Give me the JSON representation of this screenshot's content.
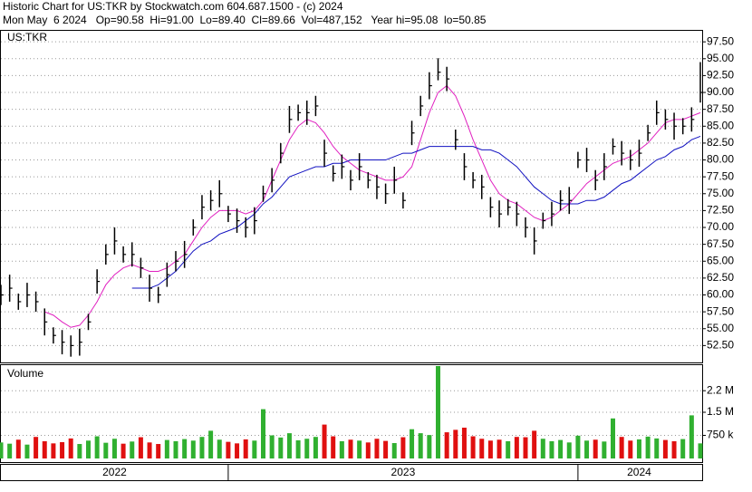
{
  "chart_data": {
    "type": "ohlc",
    "title": "Historic Chart for US:TKR by Stockwatch.com 604.687.1500 - (c) 2024",
    "subtitle": "Mon May  6 2024   Op=90.58  Hi=91.00  Lo=89.40  Cl=89.66  Vol=487,152   Year hi=95.08  lo=50.85",
    "symbol_label": "US:TKR",
    "bar_color": "#000000",
    "grid": true,
    "xlim": [
      2022.35,
      2024.35
    ],
    "xticks": [
      2023,
      2024
    ],
    "year_labels": [
      2022,
      2023,
      2024
    ],
    "ylim": [
      50,
      99
    ],
    "yticks": [
      {
        "value": 52.5,
        "label": "52.50"
      },
      {
        "value": 55,
        "label": "55.00"
      },
      {
        "value": 57.5,
        "label": "57.50"
      },
      {
        "value": 60,
        "label": "60.00"
      },
      {
        "value": 62.5,
        "label": "62.50"
      },
      {
        "value": 65,
        "label": "65.00"
      },
      {
        "value": 67.5,
        "label": "67.50"
      },
      {
        "value": 70,
        "label": "70.00"
      },
      {
        "value": 72.5,
        "label": "72.50"
      },
      {
        "value": 75,
        "label": "75.00"
      },
      {
        "value": 77.5,
        "label": "77.50"
      },
      {
        "value": 80,
        "label": "80.00"
      },
      {
        "value": 82.5,
        "label": "82.50"
      },
      {
        "value": 85,
        "label": "85.00"
      },
      {
        "value": 87.5,
        "label": "87.50"
      },
      {
        "value": 90,
        "label": "90.00"
      },
      {
        "value": 92.5,
        "label": "92.50"
      },
      {
        "value": 95,
        "label": "95.00"
      },
      {
        "value": 97.5,
        "label": "97.50"
      }
    ],
    "x": [
      2022.35,
      2022.375,
      2022.4,
      2022.425,
      2022.45,
      2022.475,
      2022.5,
      2022.525,
      2022.55,
      2022.575,
      2022.6,
      2022.625,
      2022.65,
      2022.675,
      2022.7,
      2022.725,
      2022.75,
      2022.775,
      2022.8,
      2022.825,
      2022.85,
      2022.875,
      2022.9,
      2022.925,
      2022.95,
      2022.975,
      2023.0,
      2023.025,
      2023.05,
      2023.075,
      2023.1,
      2023.125,
      2023.15,
      2023.175,
      2023.2,
      2023.225,
      2023.25,
      2023.275,
      2023.3,
      2023.325,
      2023.35,
      2023.375,
      2023.4,
      2023.425,
      2023.45,
      2023.475,
      2023.5,
      2023.525,
      2023.55,
      2023.575,
      2023.6,
      2023.625,
      2023.65,
      2023.675,
      2023.7,
      2023.725,
      2023.75,
      2023.775,
      2023.8,
      2023.825,
      2023.85,
      2023.875,
      2023.9,
      2023.925,
      2023.95,
      2023.975,
      2024.0,
      2024.025,
      2024.05,
      2024.075,
      2024.1,
      2024.125,
      2024.15,
      2024.175,
      2024.2,
      2024.225,
      2024.25,
      2024.275,
      2024.3,
      2024.325,
      2024.35
    ],
    "high": [
      61.5,
      63,
      60.2,
      61.8,
      60.5,
      58,
      55.2,
      54.8,
      54,
      55,
      57.2,
      63.8,
      67.5,
      70,
      67.2,
      67.8,
      65.5,
      63,
      61.2,
      64.8,
      66.5,
      68,
      71.2,
      74.8,
      75.5,
      77,
      73.2,
      72.8,
      71.5,
      73,
      76.2,
      78.8,
      82.5,
      88,
      88.2,
      88.8,
      89.5,
      83,
      79.2,
      80.8,
      78.5,
      81,
      78.2,
      77.8,
      76.5,
      79,
      75.2,
      85.8,
      89.5,
      93,
      95.08,
      93.8,
      84.5,
      81,
      78.2,
      77.8,
      74.5,
      74,
      74.2,
      73.8,
      71.5,
      70,
      72.2,
      73.8,
      75.5,
      76,
      81.2,
      81.8,
      78.5,
      81,
      83.2,
      82.8,
      81.5,
      83,
      85.2,
      88.8,
      87.5,
      87,
      86.2,
      87.8,
      94.5
    ],
    "low": [
      58.5,
      59,
      57.8,
      58.2,
      57.5,
      54,
      52.8,
      51.2,
      50.85,
      51,
      54.8,
      60.2,
      64.5,
      66,
      64.8,
      64.2,
      62.5,
      59,
      58.8,
      61.2,
      63.5,
      64,
      68.8,
      71.2,
      72.5,
      73,
      70.8,
      69.2,
      68.5,
      69,
      73.8,
      75.2,
      79.5,
      84,
      85.8,
      85.2,
      86.5,
      79,
      76.8,
      77.2,
      75.5,
      77,
      75.8,
      74.2,
      73.5,
      75,
      72.8,
      82.2,
      86.5,
      89,
      91.8,
      90.2,
      81.5,
      77,
      75.8,
      74.2,
      71.5,
      70,
      71.8,
      70.2,
      68.5,
      66,
      69.8,
      70.2,
      72.5,
      72,
      78.8,
      78.2,
      75.5,
      77,
      80.8,
      79.2,
      78.5,
      79,
      82.8,
      85.2,
      84.5,
      83,
      83.8,
      84.2,
      88.5
    ],
    "close": [
      60,
      61,
      59,
      60,
      59,
      56,
      54,
      53,
      52.5,
      53,
      56,
      62,
      66,
      68,
      66,
      66,
      64,
      61,
      60,
      63,
      65,
      66,
      70,
      73,
      74,
      75,
      72,
      71,
      70,
      71,
      75,
      77,
      81,
      86,
      87,
      87,
      88,
      81,
      78,
      79,
      77,
      79,
      77,
      76,
      75,
      77,
      74,
      84,
      88,
      91,
      93,
      92,
      83,
      79,
      77,
      76,
      73,
      72,
      73,
      72,
      70,
      68,
      71,
      72,
      74,
      74,
      80,
      80,
      77,
      79,
      82,
      81,
      80,
      81,
      84,
      87,
      86,
      85,
      85,
      86,
      90
    ],
    "series": [
      {
        "color": "#e020c0",
        "values": [
          null,
          null,
          null,
          null,
          null,
          57.5,
          57,
          56,
          55.2,
          55.5,
          57,
          59,
          61.5,
          63,
          64,
          64.5,
          64,
          63.5,
          63.5,
          64,
          65,
          66,
          68,
          70,
          71.5,
          72.5,
          72.5,
          72.5,
          72,
          72.5,
          74,
          77,
          80,
          83,
          85,
          86,
          85.5,
          84,
          82,
          80.5,
          79.5,
          78.5,
          78,
          77.5,
          77,
          77,
          77.5,
          79,
          83,
          87,
          90,
          91,
          89.5,
          86.5,
          83,
          80,
          77,
          75,
          74,
          73.5,
          72.5,
          71.5,
          71,
          71.5,
          72.5,
          73.5,
          75,
          76.5,
          77.5,
          78.5,
          79.5,
          80,
          80.5,
          81.5,
          82.5,
          84,
          85.5,
          86,
          86,
          86.5,
          87
        ]
      },
      {
        "color": "#1010c0",
        "values": [
          null,
          null,
          null,
          null,
          null,
          null,
          null,
          null,
          null,
          null,
          null,
          null,
          null,
          null,
          null,
          61,
          61,
          61,
          61.5,
          62.5,
          63.5,
          65,
          66.5,
          67.5,
          68,
          69,
          69.5,
          70,
          71,
          72,
          73.5,
          74.5,
          76,
          77.5,
          78,
          78.5,
          79,
          79,
          79.5,
          79.5,
          80,
          80,
          80,
          80,
          80,
          80.5,
          81,
          81,
          81.5,
          82,
          82,
          82,
          82,
          82,
          82,
          81.5,
          81.5,
          81,
          80,
          79,
          77.5,
          76,
          75,
          74,
          73.5,
          73.5,
          73.5,
          74,
          74,
          74.5,
          75.5,
          76.5,
          77,
          78,
          79,
          80,
          80.5,
          81.5,
          82,
          83,
          83.5
        ]
      }
    ],
    "volume": {
      "title": "Volume",
      "up_color": "#30b030",
      "down_color": "#e01010",
      "ylim": [
        0,
        3000000
      ],
      "yticks": [
        {
          "value": 750000,
          "label": "750 k"
        },
        {
          "value": 1500000,
          "label": "1.5 M"
        },
        {
          "value": 2200000,
          "label": "2.2 M"
        }
      ],
      "values": [
        520000,
        480000,
        610000,
        450000,
        700000,
        560000,
        490000,
        530000,
        650000,
        470000,
        580000,
        720000,
        510000,
        640000,
        480000,
        550000,
        690000,
        520000,
        470000,
        600000,
        560000,
        630000,
        580000,
        700000,
        900000,
        610000,
        540000,
        490000,
        620000,
        580000,
        1600000,
        750000,
        680000,
        820000,
        590000,
        640000,
        700000,
        1100000,
        720000,
        560000,
        610000,
        580000,
        520000,
        640000,
        570000,
        500000,
        690000,
        950000,
        820000,
        760000,
        3000000,
        850000,
        930000,
        1000000,
        720000,
        640000,
        580000,
        610000,
        560000,
        700000,
        690000,
        900000,
        640000,
        560000,
        600000,
        520000,
        740000,
        580000,
        610000,
        550000,
        1300000,
        700000,
        580000,
        620000,
        710000,
        650000,
        600000,
        560000,
        630000,
        1400000,
        490000
      ]
    }
  }
}
